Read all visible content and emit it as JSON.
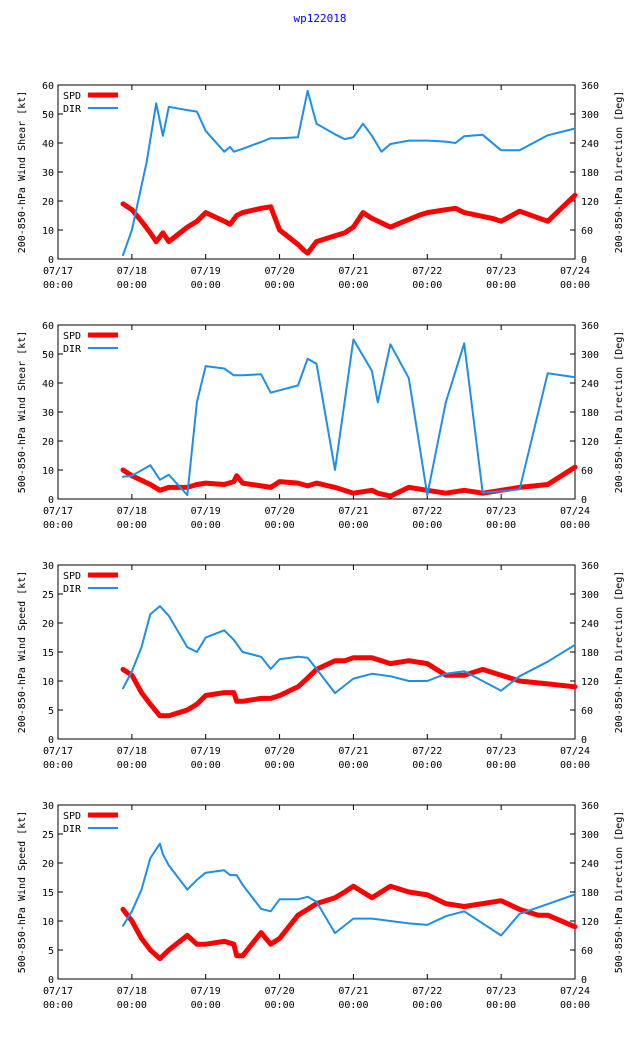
{
  "title": "wp122018",
  "colors": {
    "spd": "#ff0000",
    "dir": "#1e8fe8",
    "title": "#0000ff",
    "axis": "#000000"
  },
  "x_ticks": [
    {
      "t": 0,
      "date": "07/17",
      "time": "00:00"
    },
    {
      "t": 1,
      "date": "07/18",
      "time": "00:00"
    },
    {
      "t": 2,
      "date": "07/19",
      "time": "00:00"
    },
    {
      "t": 3,
      "date": "07/20",
      "time": "00:00"
    },
    {
      "t": 4,
      "date": "07/21",
      "time": "00:00"
    },
    {
      "t": 5,
      "date": "07/22",
      "time": "00:00"
    },
    {
      "t": 6,
      "date": "07/23",
      "time": "00:00"
    },
    {
      "t": 7,
      "date": "07/24",
      "time": "00:00"
    }
  ],
  "chart_data": [
    {
      "type": "line",
      "ylabel": "200-850-hPa Wind Shear [kt]",
      "y2label": "200-850-hPa Direction [Deg]",
      "xlim": [
        0,
        7
      ],
      "ylim": [
        0,
        60
      ],
      "y_ticks": [
        0,
        10,
        20,
        30,
        40,
        50,
        60
      ],
      "y2lim": [
        0,
        360
      ],
      "y2_ticks": [
        0,
        60,
        120,
        180,
        240,
        300,
        360
      ],
      "series": [
        {
          "name": "SPD",
          "axis": "left",
          "x": [
            0.88,
            1.0,
            1.13,
            1.25,
            1.33,
            1.42,
            1.5,
            1.75,
            1.88,
            2.0,
            2.25,
            2.33,
            2.42,
            2.5,
            2.75,
            2.88,
            3.0,
            3.25,
            3.33,
            3.38,
            3.5,
            3.75,
            3.88,
            4.0,
            4.13,
            4.25,
            4.5,
            4.88,
            5.0,
            5.25,
            5.38,
            5.5,
            5.88,
            6.0,
            6.25,
            6.63,
            7.0
          ],
          "values": [
            19,
            17,
            13,
            9,
            6,
            9,
            6,
            11,
            13,
            16,
            13,
            12,
            15,
            16,
            17.5,
            18,
            10,
            5,
            3,
            2,
            6,
            8,
            9,
            11,
            16,
            14,
            11,
            15,
            16,
            17,
            17.5,
            16,
            14,
            13,
            16.5,
            13,
            22
          ]
        },
        {
          "name": "DIR",
          "axis": "right",
          "x": [
            0.88,
            1.0,
            1.2,
            1.33,
            1.42,
            1.5,
            1.75,
            1.88,
            2.0,
            2.25,
            2.33,
            2.38,
            2.5,
            2.75,
            2.88,
            3.0,
            3.25,
            3.38,
            3.5,
            3.75,
            3.88,
            4.0,
            4.13,
            4.25,
            4.38,
            4.5,
            4.75,
            5.0,
            5.25,
            5.38,
            5.5,
            5.75,
            6.0,
            6.25,
            6.63,
            7.0
          ],
          "values": [
            8,
            60,
            200,
            322,
            255,
            315,
            308,
            305,
            265,
            222,
            232,
            222,
            228,
            242,
            250,
            250,
            252,
            348,
            280,
            258,
            248,
            252,
            280,
            255,
            222,
            238,
            245,
            245,
            243,
            240,
            254,
            257,
            225,
            225,
            256,
            270
          ]
        }
      ]
    },
    {
      "type": "line",
      "ylabel": "500-850-hPa Wind Shear [kt]",
      "y2label": "200-850-hPa Direction [Deg]",
      "xlim": [
        0,
        7
      ],
      "ylim": [
        0,
        60
      ],
      "y_ticks": [
        0,
        10,
        20,
        30,
        40,
        50,
        60
      ],
      "y2lim": [
        0,
        360
      ],
      "y2_ticks": [
        0,
        60,
        120,
        180,
        240,
        300,
        360
      ],
      "series": [
        {
          "name": "SPD",
          "axis": "left",
          "x": [
            0.88,
            1.0,
            1.25,
            1.38,
            1.5,
            1.75,
            1.88,
            2.0,
            2.25,
            2.38,
            2.42,
            2.5,
            2.75,
            2.88,
            3.0,
            3.25,
            3.38,
            3.5,
            3.75,
            4.0,
            4.25,
            4.33,
            4.5,
            4.75,
            5.0,
            5.25,
            5.5,
            5.75,
            6.0,
            6.25,
            6.63,
            7.0
          ],
          "values": [
            10,
            8,
            5,
            3,
            4,
            4,
            5,
            5.5,
            5,
            6,
            8,
            5.5,
            4.5,
            4,
            6,
            5.5,
            4.5,
            5.5,
            4,
            2,
            3,
            2,
            1,
            4,
            3,
            2,
            3,
            2,
            3,
            4,
            5,
            11
          ]
        },
        {
          "name": "DIR",
          "axis": "right",
          "x": [
            0.88,
            1.0,
            1.25,
            1.38,
            1.5,
            1.75,
            1.88,
            2.0,
            2.25,
            2.38,
            2.5,
            2.75,
            2.88,
            3.0,
            3.25,
            3.38,
            3.5,
            3.75,
            4.0,
            4.25,
            4.33,
            4.5,
            4.75,
            5.0,
            5.25,
            5.5,
            5.75,
            6.0,
            6.25,
            6.63,
            7.0
          ],
          "values": [
            46,
            48,
            70,
            40,
            50,
            8,
            200,
            275,
            270,
            256,
            256,
            258,
            220,
            225,
            235,
            290,
            280,
            60,
            330,
            265,
            200,
            320,
            250,
            8,
            200,
            322,
            13,
            16,
            20,
            260,
            252
          ]
        }
      ]
    },
    {
      "type": "line",
      "ylabel": "200-850-hPa Wind Speed [kt]",
      "y2label": "200-850-hPa Direction [Deg]",
      "xlim": [
        0,
        7
      ],
      "ylim": [
        0,
        30
      ],
      "y_ticks": [
        0,
        5,
        10,
        15,
        20,
        25,
        30
      ],
      "y2lim": [
        0,
        360
      ],
      "y2_ticks": [
        0,
        60,
        120,
        180,
        240,
        300,
        360
      ],
      "series": [
        {
          "name": "SPD",
          "axis": "left",
          "x": [
            0.88,
            1.0,
            1.13,
            1.25,
            1.38,
            1.5,
            1.75,
            1.88,
            2.0,
            2.25,
            2.38,
            2.42,
            2.5,
            2.75,
            2.88,
            3.0,
            3.25,
            3.38,
            3.5,
            3.75,
            3.88,
            4.0,
            4.25,
            4.5,
            4.75,
            5.0,
            5.25,
            5.5,
            5.75,
            6.0,
            6.25,
            6.63,
            7.0
          ],
          "values": [
            12,
            11,
            8,
            6,
            4,
            4,
            5,
            6,
            7.5,
            8,
            8,
            6.5,
            6.5,
            7,
            7,
            7.5,
            9,
            10.5,
            12,
            13.5,
            13.5,
            14,
            14,
            13,
            13.5,
            13,
            11,
            11,
            12,
            11,
            10,
            9.5,
            9
          ]
        },
        {
          "name": "DIR",
          "axis": "right",
          "x": [
            0.88,
            1.0,
            1.13,
            1.25,
            1.38,
            1.5,
            1.75,
            1.88,
            2.0,
            2.25,
            2.38,
            2.5,
            2.75,
            2.88,
            3.0,
            3.25,
            3.38,
            3.5,
            3.75,
            4.0,
            4.25,
            4.5,
            4.75,
            5.0,
            5.25,
            5.5,
            5.75,
            6.0,
            6.25,
            6.63,
            7.0
          ],
          "values": [
            105,
            140,
            190,
            258,
            275,
            255,
            190,
            180,
            210,
            225,
            205,
            180,
            170,
            145,
            165,
            170,
            168,
            145,
            95,
            125,
            135,
            130,
            120,
            120,
            135,
            140,
            120,
            100,
            130,
            160,
            195
          ]
        }
      ]
    },
    {
      "type": "line",
      "ylabel": "500-850-hPa Wind Speed [kt]",
      "y2label": "500-850-hPa Direction [Deg]",
      "xlim": [
        0,
        7
      ],
      "ylim": [
        0,
        30
      ],
      "y_ticks": [
        0,
        5,
        10,
        15,
        20,
        25,
        30
      ],
      "y2lim": [
        0,
        360
      ],
      "y2_ticks": [
        0,
        60,
        120,
        180,
        240,
        300,
        360
      ],
      "series": [
        {
          "name": "SPD",
          "axis": "left",
          "x": [
            0.88,
            1.0,
            1.13,
            1.25,
            1.38,
            1.5,
            1.75,
            1.88,
            2.0,
            2.25,
            2.38,
            2.42,
            2.5,
            2.75,
            2.88,
            3.0,
            3.25,
            3.38,
            3.5,
            3.75,
            3.88,
            4.0,
            4.25,
            4.5,
            4.75,
            5.0,
            5.25,
            5.5,
            5.75,
            6.0,
            6.25,
            6.5,
            6.63,
            7.0
          ],
          "values": [
            12,
            10,
            7,
            5,
            3.5,
            5,
            7.5,
            6,
            6,
            6.5,
            6,
            4,
            4,
            8,
            6,
            7,
            11,
            12,
            13,
            14,
            15,
            16,
            14,
            16,
            15,
            14.5,
            13,
            12.5,
            13,
            13.5,
            12,
            11,
            11,
            9
          ]
        },
        {
          "name": "DIR",
          "axis": "right",
          "x": [
            0.88,
            1.0,
            1.13,
            1.25,
            1.38,
            1.42,
            1.5,
            1.75,
            1.88,
            2.0,
            2.25,
            2.33,
            2.42,
            2.5,
            2.75,
            2.88,
            3.0,
            3.25,
            3.38,
            3.5,
            3.75,
            4.0,
            4.25,
            4.5,
            4.75,
            5.0,
            5.25,
            5.5,
            5.75,
            6.0,
            6.25,
            6.63,
            7.0
          ],
          "values": [
            110,
            140,
            185,
            250,
            280,
            258,
            235,
            185,
            205,
            220,
            225,
            215,
            215,
            195,
            145,
            140,
            165,
            165,
            170,
            160,
            95,
            125,
            125,
            120,
            115,
            112,
            130,
            140,
            115,
            90,
            135,
            155,
            175
          ]
        }
      ]
    }
  ]
}
